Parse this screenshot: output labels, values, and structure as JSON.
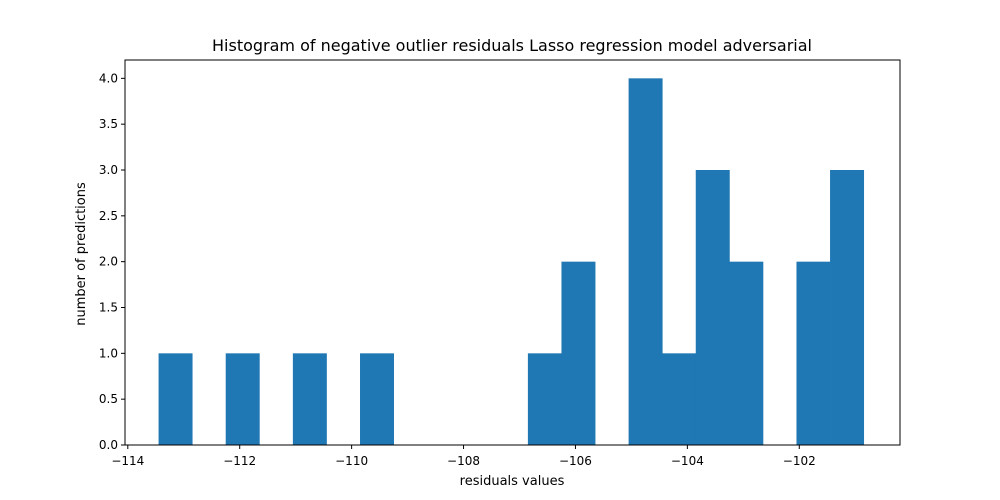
{
  "chart_data": {
    "type": "bar",
    "title": "Histogram of negative outlier residuals Lasso regression model adversarial",
    "xlabel": "residuals values",
    "ylabel": "number of predictions",
    "xlim": [
      -114.05,
      -100.2
    ],
    "ylim": [
      0,
      4.2
    ],
    "grid": false,
    "bar_color": "#1f77b4",
    "bins": [
      {
        "x0": -113.45,
        "x1": -112.85,
        "count": 1
      },
      {
        "x0": -112.85,
        "x1": -112.25,
        "count": 0
      },
      {
        "x0": -112.25,
        "x1": -111.65,
        "count": 1
      },
      {
        "x0": -111.65,
        "x1": -111.05,
        "count": 0
      },
      {
        "x0": -111.05,
        "x1": -110.45,
        "count": 1
      },
      {
        "x0": -110.45,
        "x1": -109.85,
        "count": 0
      },
      {
        "x0": -109.85,
        "x1": -109.25,
        "count": 1
      },
      {
        "x0": -109.25,
        "x1": -108.65,
        "count": 0
      },
      {
        "x0": -108.65,
        "x1": -108.05,
        "count": 0
      },
      {
        "x0": -108.05,
        "x1": -107.45,
        "count": 0
      },
      {
        "x0": -107.45,
        "x1": -106.85,
        "count": 0
      },
      {
        "x0": -106.85,
        "x1": -106.25,
        "count": 1
      },
      {
        "x0": -106.25,
        "x1": -105.65,
        "count": 2
      },
      {
        "x0": -105.65,
        "x1": -105.05,
        "count": 0
      },
      {
        "x0": -105.05,
        "x1": -104.45,
        "count": 4
      },
      {
        "x0": -104.45,
        "x1": -103.85,
        "count": 1
      },
      {
        "x0": -103.85,
        "x1": -103.25,
        "count": 3
      },
      {
        "x0": -103.25,
        "x1": -102.65,
        "count": 2
      },
      {
        "x0": -102.65,
        "x1": -102.05,
        "count": 0
      },
      {
        "x0": -102.05,
        "x1": -101.45,
        "count": 2
      },
      {
        "x0": -101.45,
        "x1": -100.85,
        "count": 3
      }
    ],
    "x_ticks": [
      -114,
      -112,
      -110,
      -108,
      -106,
      -104,
      -102
    ],
    "x_tick_labels": [
      "−114",
      "−112",
      "−110",
      "−108",
      "−106",
      "−104",
      "−102"
    ],
    "y_ticks": [
      0.0,
      0.5,
      1.0,
      1.5,
      2.0,
      2.5,
      3.0,
      3.5,
      4.0
    ],
    "y_tick_labels": [
      "0.0",
      "0.5",
      "1.0",
      "1.5",
      "2.0",
      "2.5",
      "3.0",
      "3.5",
      "4.0"
    ]
  }
}
